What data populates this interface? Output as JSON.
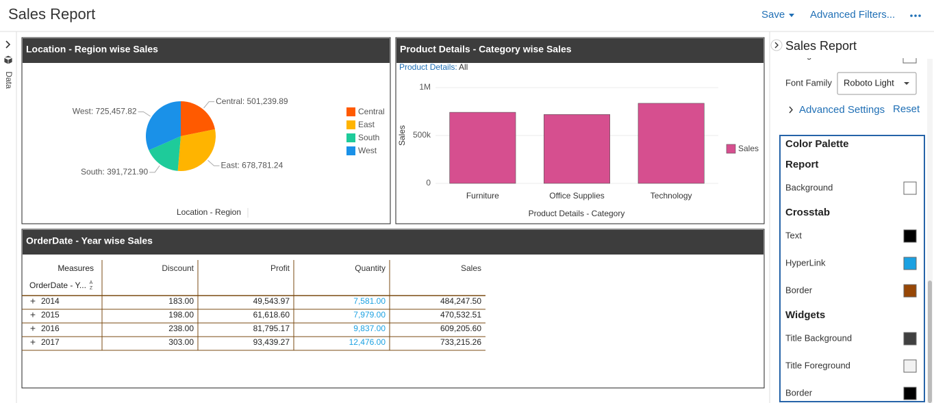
{
  "header": {
    "title": "Sales Report",
    "save": "Save",
    "advanced_filters": "Advanced Filters..."
  },
  "sidebar": {
    "label": "Data"
  },
  "chart_data": [
    {
      "type": "pie",
      "title": "Location - Region wise Sales",
      "categories": [
        "Central",
        "East",
        "South",
        "West"
      ],
      "values": [
        501239.89,
        678781.24,
        391721.9,
        725457.82
      ],
      "value_labels": [
        "Central: 501,239.89",
        "East: 678,781.24",
        "South: 391,721.90",
        "West: 725,457.82"
      ],
      "colors": [
        "#ff5a00",
        "#ffb400",
        "#1ecb9a",
        "#1a91e8"
      ],
      "xlabel": "Location - Region",
      "legend": "right"
    },
    {
      "type": "bar",
      "title": "Product Details - Category wise Sales",
      "filter": {
        "label": "Product Details:",
        "value": "All"
      },
      "categories": [
        "Furniture",
        "Office Supplies",
        "Technology"
      ],
      "series": [
        {
          "name": "Sales",
          "color": "#d64f8f",
          "values": [
            742000,
            719000,
            836000
          ]
        }
      ],
      "ylim": [
        0,
        1000000
      ],
      "yticks": [
        0,
        {
          "value": 500000,
          "label": "500k"
        },
        {
          "value": 1000000,
          "label": "1M"
        }
      ],
      "xlabel": "Product Details - Category",
      "ylabel": "Sales",
      "grid": true,
      "legend": "right"
    }
  ],
  "table": {
    "title": "OrderDate - Year wise Sales",
    "corner_top": "Measures",
    "corner_bottom": "OrderDate - Y...",
    "sort_icon": {
      "top": "A",
      "bottom": "Z"
    },
    "columns": [
      "Discount",
      "Profit",
      "Quantity",
      "Sales"
    ],
    "rows": [
      [
        "2014",
        "183.00",
        "49,543.97",
        "7,581.00",
        "484,247.50"
      ],
      [
        "2015",
        "198.00",
        "61,618.60",
        "7,979.00",
        "470,532.51"
      ],
      [
        "2016",
        "238.00",
        "81,795.17",
        "9,837.00",
        "609,205.60"
      ],
      [
        "2017",
        "303.00",
        "93,439.27",
        "12,476.00",
        "733,215.26"
      ]
    ]
  },
  "properties": {
    "title": "Sales Report",
    "clipped_label": "Change font color",
    "font_family_label": "Font Family",
    "font_family_value": "Roboto Light",
    "advanced_settings": "Advanced Settings",
    "reset": "Reset",
    "palette_title": "Color Palette",
    "groups": [
      {
        "name": "Report",
        "items": [
          {
            "label": "Background",
            "color": "#ffffff"
          }
        ]
      },
      {
        "name": "Crosstab",
        "items": [
          {
            "label": "Text",
            "color": "#000000"
          },
          {
            "label": "HyperLink",
            "color": "#1ba1e2"
          },
          {
            "label": "Border",
            "color": "#974706"
          }
        ]
      },
      {
        "name": "Widgets",
        "items": [
          {
            "label": "Title Background",
            "color": "#404040"
          },
          {
            "label": "Title Foreground",
            "color": "#f2f2f2"
          },
          {
            "label": "Border",
            "color": "#000000"
          }
        ]
      }
    ]
  }
}
